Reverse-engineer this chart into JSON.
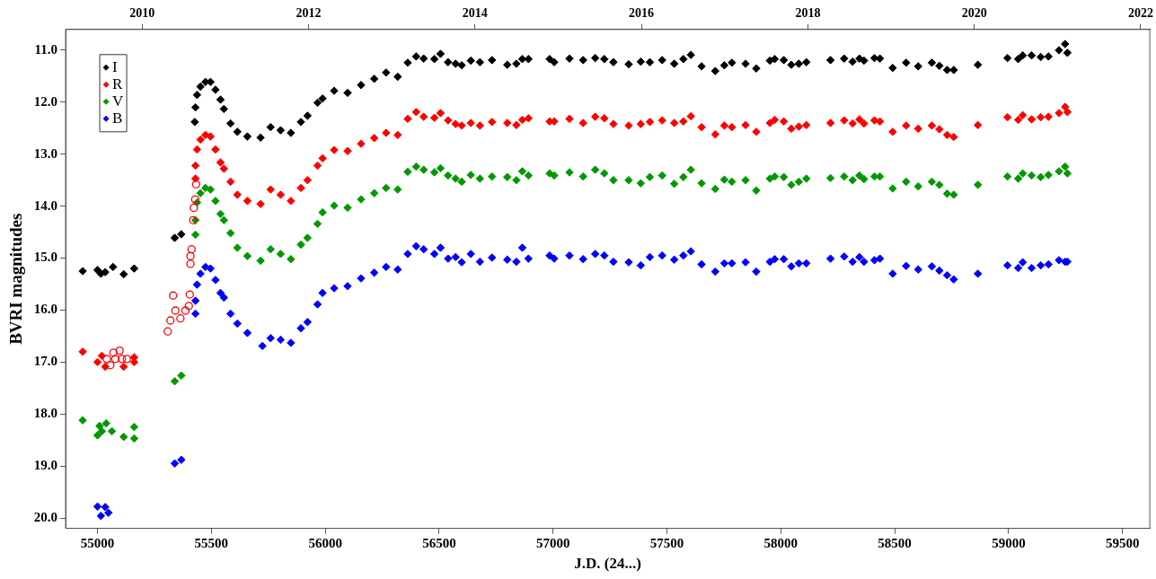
{
  "chart_data": {
    "type": "scatter",
    "xlabel": "J.D. (24...)",
    "ylabel": "BVRI magnitudes",
    "xlim": [
      54860,
      59620
    ],
    "ylim": [
      20.2,
      10.6
    ],
    "xticks": [
      55000,
      55500,
      56000,
      56500,
      57000,
      57500,
      58000,
      58500,
      59000,
      59500
    ],
    "yticks": [
      {
        "value": 11,
        "label": "11.0"
      },
      {
        "value": 12,
        "label": "12.0"
      },
      {
        "value": 13,
        "label": "13.0"
      },
      {
        "value": 14,
        "label": "14.0"
      },
      {
        "value": 15,
        "label": "15.0"
      },
      {
        "value": 16,
        "label": "16.0"
      },
      {
        "value": 17,
        "label": "17.0"
      },
      {
        "value": 18,
        "label": "18.0"
      },
      {
        "value": 19,
        "label": "19.0"
      },
      {
        "value": 20,
        "label": "20.0"
      }
    ],
    "x2lim": [
      2009.08,
      2022.11
    ],
    "x2ticks": [
      2010,
      2012,
      2014,
      2016,
      2018,
      2020,
      2022
    ],
    "grid": false,
    "legend": "top left",
    "marker": "diamond",
    "series": [
      {
        "name": "I",
        "color": "#000000",
        "x": [
          54935,
          55000,
          55015,
          55034,
          55068,
          55115,
          55161,
          55339,
          55368,
          55427,
          55430,
          55437,
          55452,
          55474,
          55496,
          55518,
          55540,
          55555,
          55584,
          55614,
          55658,
          55716,
          55760,
          55804,
          55849,
          55893,
          55922,
          55966,
          55988,
          56039,
          56098,
          56157,
          56215,
          56267,
          56318,
          56362,
          56399,
          56432,
          56479,
          56506,
          56539,
          56572,
          56599,
          56639,
          56679,
          56732,
          56799,
          56839,
          56865,
          56892,
          56985,
          57005,
          57072,
          57132,
          57185,
          57225,
          57265,
          57332,
          57385,
          57425,
          57479,
          57532,
          57572,
          57605,
          57652,
          57712,
          57752,
          57785,
          57845,
          57892,
          57952,
          57973,
          58013,
          58046,
          58079,
          58112,
          58218,
          58278,
          58315,
          58345,
          58365,
          58411,
          58435,
          58491,
          58550,
          58603,
          58663,
          58696,
          58730,
          58759,
          58865,
          58995,
          59042,
          59062,
          59101,
          59141,
          59175,
          59221,
          59248,
          59258
        ],
        "values": [
          15.25,
          15.23,
          15.3,
          15.27,
          15.17,
          15.31,
          15.2,
          14.61,
          14.54,
          12.38,
          12.1,
          11.86,
          11.7,
          11.61,
          11.61,
          11.76,
          11.95,
          12.13,
          12.41,
          12.57,
          12.66,
          12.68,
          12.48,
          12.54,
          12.59,
          12.38,
          12.26,
          12.01,
          11.93,
          11.78,
          11.82,
          11.67,
          11.55,
          11.43,
          11.51,
          11.24,
          11.12,
          11.16,
          11.17,
          11.07,
          11.23,
          11.26,
          11.29,
          11.2,
          11.23,
          11.19,
          11.28,
          11.26,
          11.17,
          11.17,
          11.17,
          11.23,
          11.16,
          11.19,
          11.15,
          11.17,
          11.23,
          11.27,
          11.22,
          11.23,
          11.19,
          11.26,
          11.17,
          11.09,
          11.31,
          11.4,
          11.29,
          11.24,
          11.26,
          11.35,
          11.2,
          11.17,
          11.19,
          11.28,
          11.26,
          11.23,
          11.19,
          11.16,
          11.22,
          11.16,
          11.2,
          11.15,
          11.16,
          11.34,
          11.24,
          11.31,
          11.24,
          11.3,
          11.38,
          11.38,
          11.28,
          11.15,
          11.17,
          11.1,
          11.1,
          11.13,
          11.12,
          11.0,
          10.88,
          11.05
        ]
      },
      {
        "name": "R",
        "color": "#ff0000",
        "x": [
          54935,
          55000,
          55019,
          55034,
          55115,
          55161,
          55161,
          55430,
          55430,
          55437,
          55452,
          55474,
          55496,
          55518,
          55540,
          55555,
          55584,
          55614,
          55658,
          55716,
          55760,
          55804,
          55849,
          55893,
          55922,
          55966,
          55988,
          56039,
          56098,
          56157,
          56215,
          56267,
          56318,
          56362,
          56399,
          56432,
          56479,
          56506,
          56539,
          56572,
          56599,
          56639,
          56679,
          56732,
          56799,
          56839,
          56865,
          56892,
          56985,
          57005,
          57072,
          57132,
          57185,
          57225,
          57265,
          57332,
          57385,
          57425,
          57479,
          57532,
          57572,
          57605,
          57652,
          57712,
          57752,
          57785,
          57845,
          57892,
          57952,
          57973,
          58013,
          58046,
          58079,
          58112,
          58218,
          58278,
          58315,
          58345,
          58365,
          58411,
          58435,
          58491,
          58550,
          58603,
          58663,
          58696,
          58730,
          58759,
          58865,
          58995,
          59042,
          59062,
          59101,
          59141,
          59175,
          59221,
          59248,
          59258
        ],
        "values": [
          16.8,
          17.0,
          16.88,
          17.09,
          17.09,
          16.91,
          17.0,
          13.47,
          13.22,
          12.91,
          12.72,
          12.63,
          12.66,
          12.91,
          13.16,
          13.28,
          13.53,
          13.78,
          13.9,
          13.96,
          13.68,
          13.78,
          13.9,
          13.65,
          13.5,
          13.22,
          13.08,
          12.92,
          12.94,
          12.8,
          12.69,
          12.59,
          12.63,
          12.32,
          12.19,
          12.28,
          12.3,
          12.21,
          12.35,
          12.42,
          12.45,
          12.4,
          12.45,
          12.38,
          12.4,
          12.44,
          12.34,
          12.31,
          12.37,
          12.37,
          12.32,
          12.4,
          12.28,
          12.31,
          12.42,
          12.45,
          12.42,
          12.38,
          12.35,
          12.4,
          12.37,
          12.27,
          12.48,
          12.62,
          12.45,
          12.48,
          12.44,
          12.57,
          12.4,
          12.34,
          12.37,
          12.51,
          12.47,
          12.44,
          12.4,
          12.35,
          12.41,
          12.33,
          12.41,
          12.35,
          12.37,
          12.57,
          12.45,
          12.51,
          12.45,
          12.52,
          12.63,
          12.67,
          12.44,
          12.29,
          12.34,
          12.25,
          12.33,
          12.29,
          12.28,
          12.21,
          12.09,
          12.19
        ]
      },
      {
        "color": "#ff0000",
        "marker": "circle",
        "x": [
          55041,
          55056,
          55070,
          55078,
          55097,
          55107,
          55129,
          55308,
          55320,
          55332,
          55342,
          55364,
          55386,
          55401,
          55405,
          55408,
          55408,
          55413,
          55420,
          55423,
          55429,
          55433
        ],
        "values": [
          16.94,
          17.06,
          16.82,
          16.94,
          16.78,
          16.94,
          16.94,
          16.41,
          16.2,
          15.72,
          16.01,
          16.16,
          16.01,
          15.92,
          15.7,
          15.11,
          14.96,
          14.83,
          14.27,
          14.03,
          13.87,
          13.58
        ]
      },
      {
        "name": "V",
        "color": "#009900",
        "x": [
          54935,
          55000,
          55009,
          55019,
          55038,
          55063,
          55115,
          55161,
          55161,
          55339,
          55368,
          55430,
          55430,
          55437,
          55452,
          55474,
          55496,
          55518,
          55540,
          55555,
          55584,
          55614,
          55658,
          55716,
          55760,
          55804,
          55849,
          55893,
          55922,
          55966,
          55988,
          56039,
          56098,
          56157,
          56215,
          56267,
          56318,
          56362,
          56399,
          56432,
          56479,
          56506,
          56539,
          56572,
          56599,
          56639,
          56679,
          56732,
          56799,
          56839,
          56865,
          56892,
          56985,
          57005,
          57072,
          57132,
          57185,
          57225,
          57265,
          57332,
          57385,
          57425,
          57479,
          57532,
          57572,
          57605,
          57652,
          57712,
          57752,
          57785,
          57845,
          57892,
          57952,
          57973,
          58013,
          58046,
          58079,
          58112,
          58218,
          58278,
          58315,
          58345,
          58365,
          58411,
          58435,
          58491,
          58550,
          58603,
          58663,
          58696,
          58730,
          58759,
          58865,
          58995,
          59042,
          59062,
          59101,
          59141,
          59175,
          59221,
          59248,
          59258
        ],
        "values": [
          18.12,
          18.41,
          18.23,
          18.33,
          18.18,
          18.33,
          18.44,
          18.25,
          18.47,
          17.37,
          17.26,
          14.55,
          14.27,
          13.93,
          13.75,
          13.65,
          13.68,
          13.9,
          14.15,
          14.27,
          14.52,
          14.8,
          14.96,
          15.05,
          14.83,
          14.92,
          15.02,
          14.74,
          14.61,
          14.34,
          14.12,
          13.99,
          14.03,
          13.87,
          13.75,
          13.65,
          13.68,
          13.34,
          13.24,
          13.3,
          13.35,
          13.27,
          13.41,
          13.47,
          13.53,
          13.4,
          13.47,
          13.43,
          13.44,
          13.5,
          13.33,
          13.41,
          13.37,
          13.41,
          13.35,
          13.43,
          13.3,
          13.37,
          13.5,
          13.5,
          13.56,
          13.44,
          13.41,
          13.57,
          13.44,
          13.3,
          13.56,
          13.67,
          13.49,
          13.53,
          13.5,
          13.7,
          13.47,
          13.43,
          13.44,
          13.59,
          13.53,
          13.47,
          13.46,
          13.43,
          13.5,
          13.41,
          13.48,
          13.43,
          13.43,
          13.66,
          13.53,
          13.62,
          13.53,
          13.59,
          13.76,
          13.78,
          13.59,
          13.43,
          13.47,
          13.37,
          13.41,
          13.44,
          13.4,
          13.33,
          13.24,
          13.37
        ]
      },
      {
        "name": "B",
        "color": "#0000ff",
        "x": [
          55000,
          55015,
          55034,
          55048,
          55339,
          55368,
          55430,
          55430,
          55437,
          55452,
          55474,
          55496,
          55518,
          55540,
          55555,
          55584,
          55614,
          55658,
          55724,
          55760,
          55804,
          55849,
          55893,
          55922,
          55966,
          55988,
          56039,
          56098,
          56157,
          56215,
          56267,
          56318,
          56362,
          56399,
          56432,
          56479,
          56506,
          56539,
          56572,
          56599,
          56639,
          56679,
          56732,
          56799,
          56839,
          56865,
          56892,
          56985,
          57005,
          57072,
          57132,
          57185,
          57225,
          57265,
          57332,
          57385,
          57425,
          57479,
          57532,
          57572,
          57605,
          57652,
          57712,
          57752,
          57785,
          57845,
          57892,
          57952,
          57973,
          58013,
          58046,
          58079,
          58112,
          58218,
          58278,
          58315,
          58345,
          58365,
          58411,
          58435,
          58491,
          58550,
          58603,
          58663,
          58696,
          58730,
          58759,
          58865,
          58995,
          59042,
          59062,
          59101,
          59141,
          59175,
          59221,
          59248,
          59258
        ],
        "values": [
          19.78,
          19.96,
          19.79,
          19.9,
          18.95,
          18.88,
          16.07,
          15.82,
          15.51,
          15.3,
          15.17,
          15.2,
          15.42,
          15.67,
          15.76,
          16.07,
          16.26,
          16.44,
          16.69,
          16.54,
          16.57,
          16.63,
          16.35,
          16.23,
          15.89,
          15.67,
          15.58,
          15.54,
          15.39,
          15.28,
          15.17,
          15.22,
          14.92,
          14.77,
          14.83,
          14.92,
          14.8,
          15.01,
          14.98,
          15.08,
          14.92,
          15.07,
          14.99,
          15.03,
          15.07,
          14.8,
          15.01,
          14.95,
          15.01,
          14.95,
          15.02,
          14.92,
          14.95,
          15.07,
          15.08,
          15.14,
          14.98,
          14.95,
          15.03,
          14.95,
          14.87,
          15.12,
          15.26,
          15.1,
          15.1,
          15.08,
          15.26,
          15.07,
          15.02,
          15.02,
          15.16,
          15.1,
          15.1,
          15.01,
          14.97,
          15.07,
          14.98,
          15.07,
          15.04,
          15.01,
          15.3,
          15.15,
          15.22,
          15.16,
          15.24,
          15.33,
          15.41,
          15.3,
          15.14,
          15.19,
          15.08,
          15.19,
          15.14,
          15.12,
          15.04,
          15.07,
          15.07
        ]
      }
    ]
  }
}
